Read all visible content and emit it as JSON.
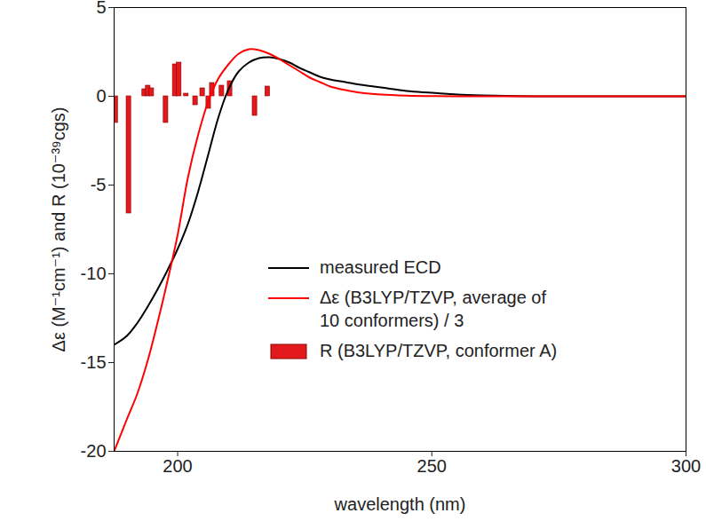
{
  "chart_data": {
    "type": "line",
    "xlabel": "wavelength (nm)",
    "ylabel": "Δε (M⁻¹cm⁻¹) and R (10⁻³⁹cgs)",
    "x": [
      187.5,
      190,
      192,
      194,
      196,
      198,
      200,
      202,
      204,
      206,
      208,
      210,
      212,
      214,
      216,
      218,
      220,
      222,
      224,
      226,
      228,
      230,
      233,
      236,
      240,
      245,
      250,
      255,
      260,
      270,
      280,
      290,
      300
    ],
    "series": [
      {
        "name": "measured ECD",
        "color": "#000000",
        "values": [
          -14,
          -13.5,
          -12.8,
          -11.9,
          -10.9,
          -9.8,
          -8.6,
          -7.2,
          -5.4,
          -3.3,
          -1.2,
          0.4,
          1.4,
          1.9,
          2.15,
          2.2,
          2.1,
          1.9,
          1.6,
          1.35,
          1.1,
          0.95,
          0.8,
          0.65,
          0.5,
          0.3,
          0.2,
          0.1,
          0.05,
          0,
          0,
          0,
          0
        ]
      },
      {
        "name": "Δε (B3LYP/TZVP, average of 10 conformers) / 3",
        "color": "#ff0000",
        "values": [
          -20,
          -18.2,
          -16.8,
          -15,
          -12.8,
          -10.4,
          -7.8,
          -4.6,
          -2.2,
          -0.3,
          1,
          1.8,
          2.4,
          2.65,
          2.6,
          2.4,
          2.1,
          1.75,
          1.4,
          1.05,
          0.8,
          0.55,
          0.35,
          0.2,
          0.1,
          0.04,
          0.01,
          0,
          0,
          0,
          0,
          0,
          0
        ]
      },
      {
        "name": "R (B3LYP/TZVP, conformer A)",
        "type": "bar",
        "color": "#e31a1c",
        "x": [
          187.8,
          190.4,
          193.5,
          194.2,
          194.9,
          197.7,
          199.5,
          200.3,
          201.7,
          203.5,
          204.9,
          206.1,
          206.8,
          208.7,
          210.3,
          215.2,
          217.7
        ],
        "values": [
          -1.5,
          -6.6,
          0.4,
          0.6,
          0.45,
          -1.5,
          1.8,
          1.9,
          0.15,
          -0.5,
          0.45,
          -0.7,
          0.75,
          0.6,
          0.85,
          -1.1,
          0.55
        ]
      }
    ],
    "xlim": [
      187.5,
      300
    ],
    "ylim": [
      -20,
      5
    ],
    "xticks": [
      200,
      250,
      300
    ],
    "yticks": [
      -20,
      -15,
      -10,
      -5,
      0,
      5
    ],
    "grid": false,
    "legend": "right"
  }
}
